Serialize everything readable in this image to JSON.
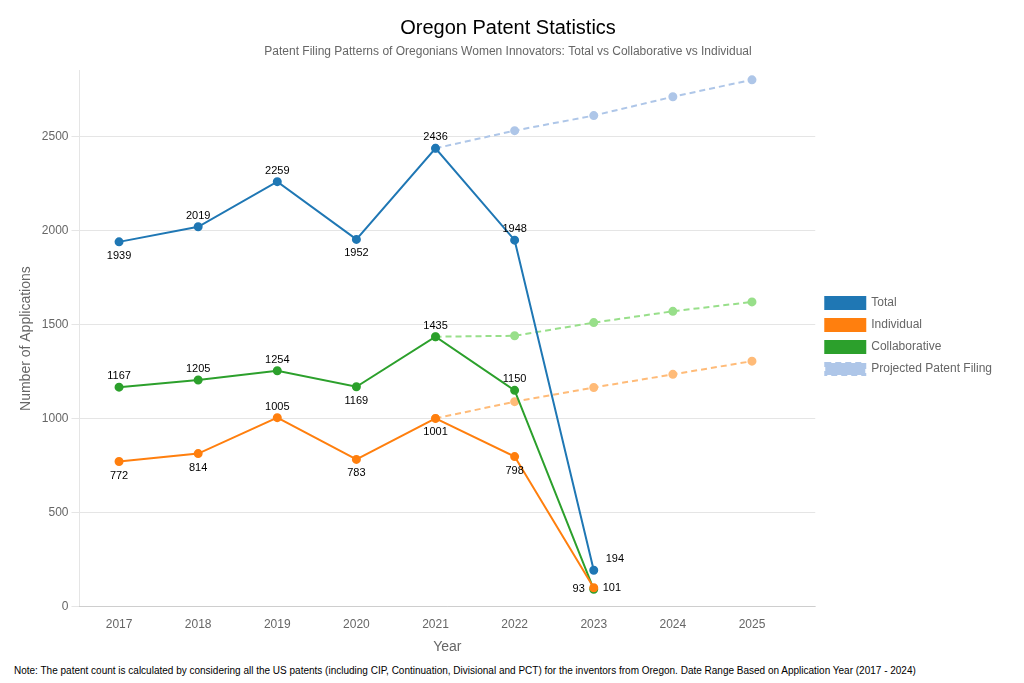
{
  "chart_data": {
    "type": "line",
    "title": "Oregon Patent Statistics",
    "subtitle": "Patent Filing Patterns of Oregonians Women Innovators: Total vs Collaborative vs Individual",
    "xlabel": "Year",
    "ylabel": "Number of Applications",
    "note": "Note: The patent count is calculated by considering all the US patents (including CIP, Continuation, Divisional and PCT) for the inventors from Oregon. Date Range Based on Application Year (2017 - 2024)",
    "xlim": [
      2016.5,
      2025.8
    ],
    "xticks": [
      2017,
      2018,
      2019,
      2020,
      2021,
      2022,
      2023,
      2024,
      2025
    ],
    "ylim": [
      0,
      2850
    ],
    "yticks": [
      0,
      500,
      1000,
      1500,
      2000,
      2500
    ],
    "grid": "y",
    "legend": "right",
    "series": [
      {
        "name": "Total",
        "color": "#1f77b4",
        "line_style": "solid",
        "marker": "circle",
        "data_labels": true,
        "x": [
          2017,
          2018,
          2019,
          2020,
          2021,
          2022,
          2023
        ],
        "values": [
          1939,
          2019,
          2259,
          1952,
          2436,
          1948,
          194
        ]
      },
      {
        "name": "Individual",
        "color": "#ff7f0e",
        "line_style": "solid",
        "marker": "circle",
        "data_labels": true,
        "x": [
          2017,
          2018,
          2019,
          2020,
          2021,
          2022,
          2023
        ],
        "values": [
          772,
          814,
          1005,
          783,
          1001,
          798,
          101
        ]
      },
      {
        "name": "Collaborative",
        "color": "#2ca02c",
        "line_style": "solid",
        "marker": "circle",
        "data_labels": true,
        "x": [
          2017,
          2018,
          2019,
          2020,
          2021,
          2022,
          2023
        ],
        "values": [
          1167,
          1205,
          1254,
          1169,
          1435,
          1150,
          93
        ]
      },
      {
        "name": "Projected Patent Filing",
        "color": "#aec6e8",
        "line_style": "dashed",
        "marker": "circle",
        "x": [
          2021,
          2022,
          2023,
          2024,
          2025
        ],
        "values": [
          2436,
          2530,
          2610,
          2710,
          2800
        ]
      },
      {
        "name": "Projected Patent Filing",
        "color": "#ffbb78",
        "line_style": "dashed",
        "marker": "circle",
        "x": [
          2021,
          2022,
          2023,
          2024,
          2025
        ],
        "values": [
          1001,
          1090,
          1165,
          1235,
          1305
        ]
      },
      {
        "name": "Projected Patent Filing",
        "color": "#98df8a",
        "line_style": "dashed",
        "marker": "circle",
        "x": [
          2021,
          2022,
          2023,
          2024,
          2025
        ],
        "values": [
          1435,
          1440,
          1510,
          1570,
          1620
        ]
      }
    ]
  }
}
